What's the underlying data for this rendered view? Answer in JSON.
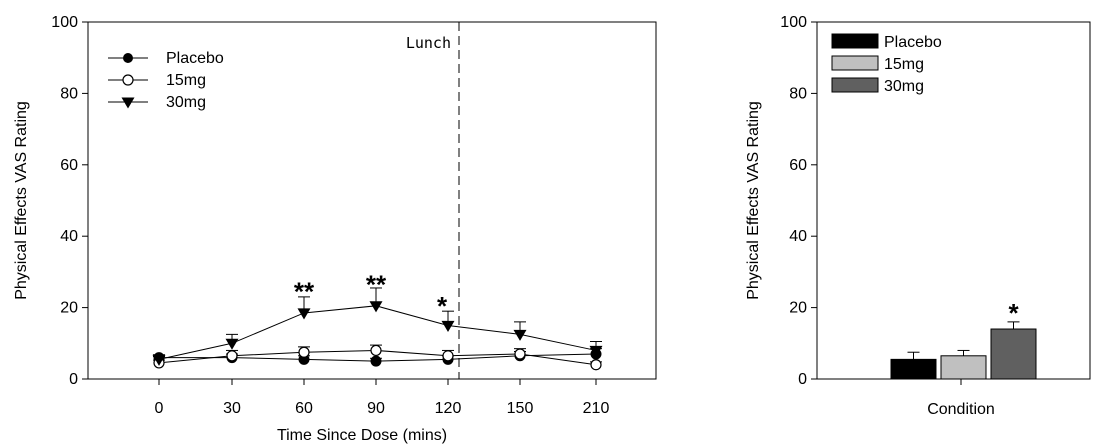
{
  "chart_data": [
    {
      "type": "line",
      "xlabel": "Time Since Dose (mins)",
      "ylabel": "Physical Effects VAS Rating",
      "ylim": [
        0,
        100
      ],
      "categories": [
        "0",
        "30",
        "60",
        "90",
        "120",
        "150",
        "210"
      ],
      "yticks": [
        "0",
        "20",
        "40",
        "60",
        "80",
        "100"
      ],
      "series": [
        {
          "name": "Placebo",
          "marker": "filled-circle",
          "color": "#000000",
          "values": [
            6,
            6,
            5.5,
            5,
            5.5,
            6.5,
            7
          ],
          "errors": [
            0.8,
            1,
            1,
            0.8,
            1,
            1.2,
            1.5
          ]
        },
        {
          "name": "15mg",
          "marker": "open-circle",
          "color": "#000000",
          "values": [
            4.5,
            6.5,
            7.5,
            8,
            6.5,
            7,
            4
          ],
          "errors": [
            0.8,
            1.5,
            1.5,
            1.5,
            1.5,
            1.5,
            0.8
          ]
        },
        {
          "name": "30mg",
          "marker": "filled-triangle-down",
          "color": "#000000",
          "values": [
            5.5,
            10,
            18.5,
            20.5,
            15,
            12.5,
            8
          ],
          "errors": [
            0.8,
            2.5,
            4.5,
            5,
            4,
            3.5,
            2.5
          ]
        }
      ],
      "annotations": [
        {
          "text": "**",
          "x": "60",
          "y": 27
        },
        {
          "text": "**",
          "x": "90",
          "y": 29
        },
        {
          "text": "*",
          "x": "120",
          "y": 23
        }
      ],
      "marker_line": {
        "x": "120",
        "label": "Lunch",
        "style": "dashed"
      },
      "legend": "top-left",
      "grid": false
    },
    {
      "type": "bar",
      "xlabel": "Condition",
      "ylabel": "Physical Effects VAS Rating",
      "ylim": [
        0,
        100
      ],
      "yticks": [
        "0",
        "20",
        "40",
        "60",
        "80",
        "100"
      ],
      "series": [
        {
          "name": "Placebo",
          "color": "#000000",
          "value": 5.5,
          "error": 2
        },
        {
          "name": "15mg",
          "color": "#c0c0c0",
          "value": 6.5,
          "error": 1.5
        },
        {
          "name": "30mg",
          "color": "#606060",
          "value": 14,
          "error": 2
        }
      ],
      "annotations": [
        {
          "text": "*",
          "series": "30mg",
          "y": 21
        }
      ],
      "legend": "top-left",
      "grid": false
    }
  ]
}
